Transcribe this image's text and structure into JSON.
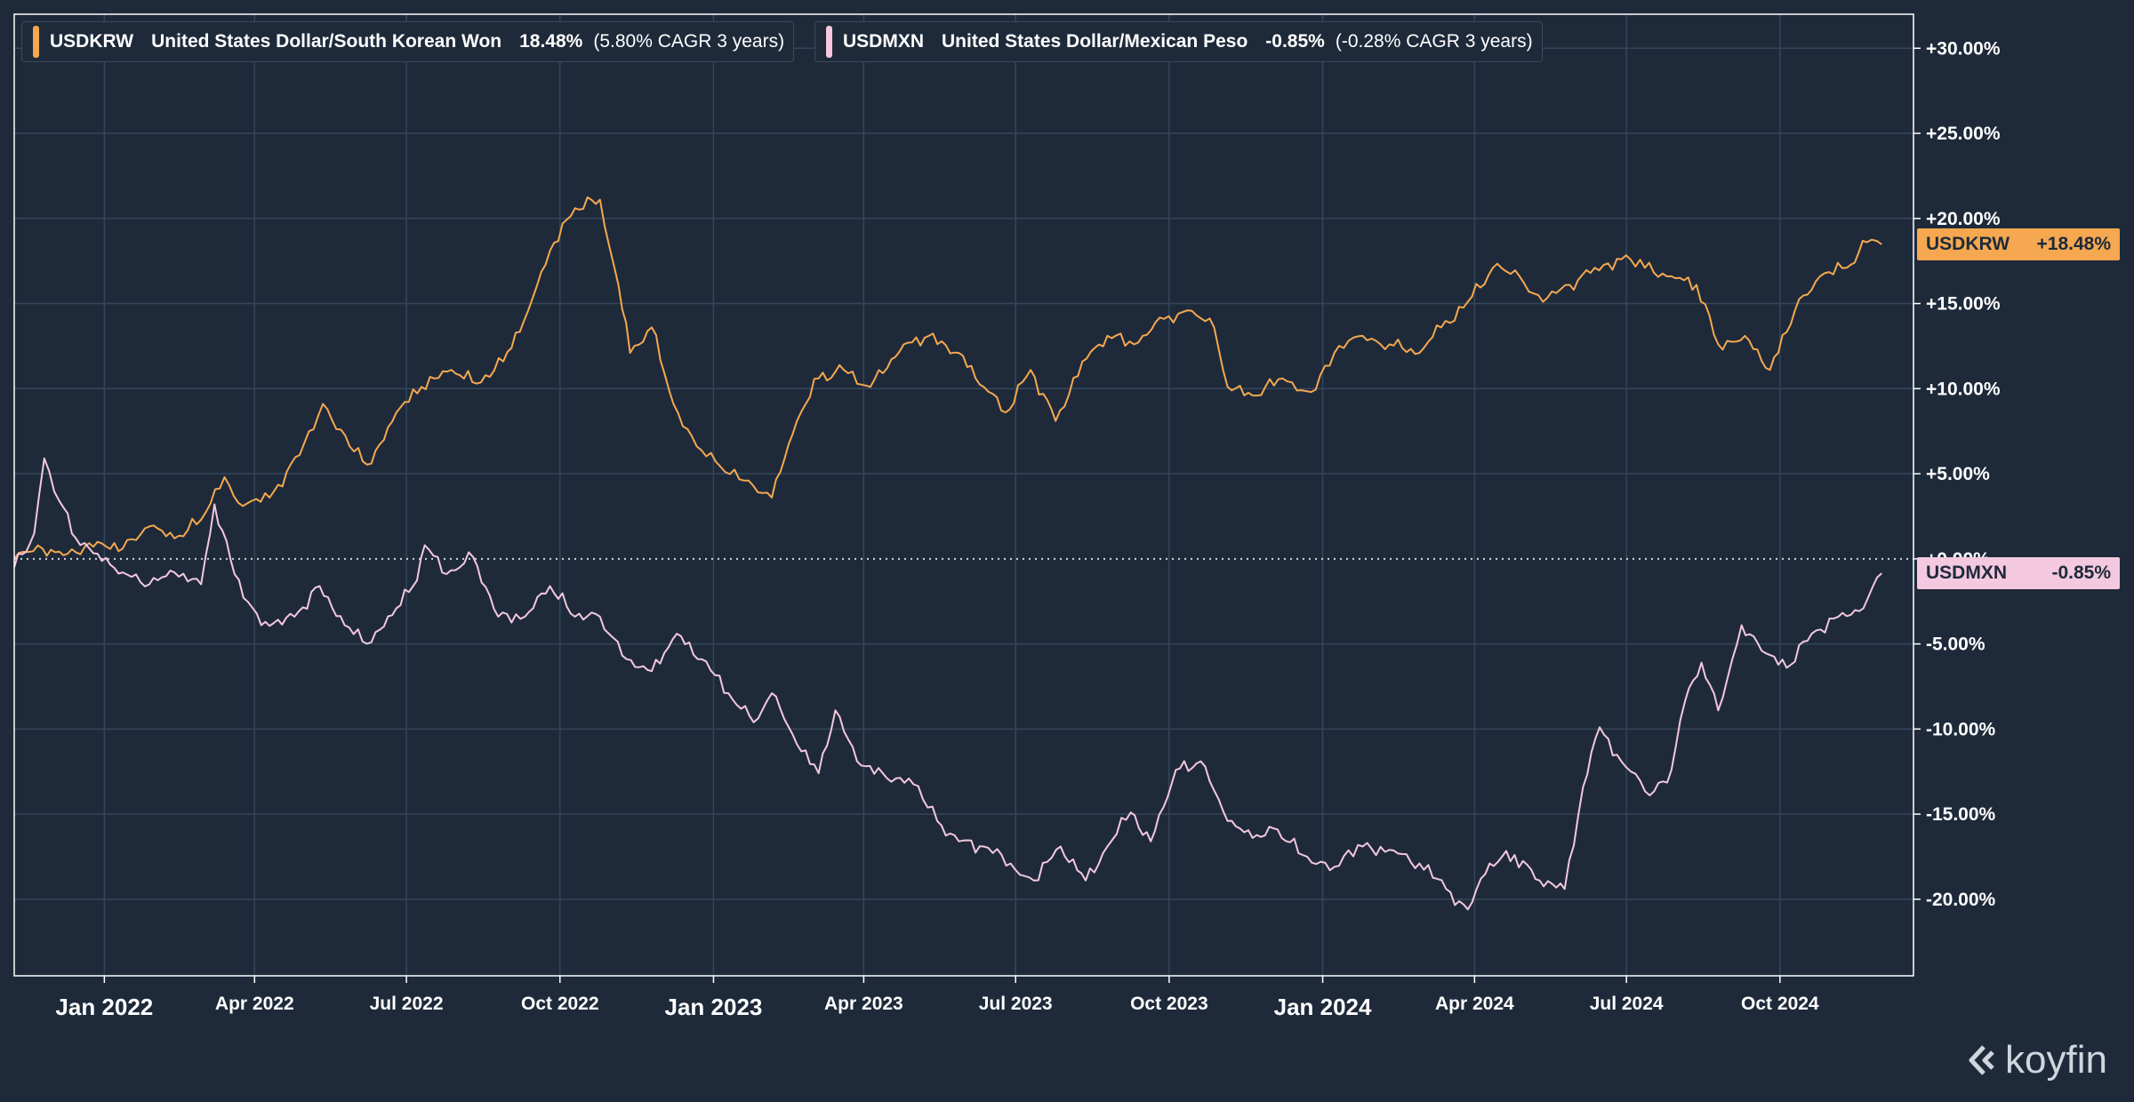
{
  "chart_data": {
    "type": "line",
    "y_unit": "percent change",
    "ylim": [
      -24.5,
      32
    ],
    "y_ticks": [
      "+30.00%",
      "+25.00%",
      "+20.00%",
      "+15.00%",
      "+10.00%",
      "+5.00%",
      "+0.00%",
      "-5.00%",
      "-10.00%",
      "-15.00%",
      "-20.00%"
    ],
    "x_ticks": [
      {
        "label": "Jan 2022",
        "date": "2022-01-01",
        "major": true
      },
      {
        "label": "Apr 2022",
        "date": "2022-04-01",
        "major": false
      },
      {
        "label": "Jul 2022",
        "date": "2022-07-01",
        "major": false
      },
      {
        "label": "Oct 2022",
        "date": "2022-10-01",
        "major": false
      },
      {
        "label": "Jan 2023",
        "date": "2023-01-01",
        "major": true
      },
      {
        "label": "Apr 2023",
        "date": "2023-04-01",
        "major": false
      },
      {
        "label": "Jul 2023",
        "date": "2023-07-01",
        "major": false
      },
      {
        "label": "Oct 2023",
        "date": "2023-10-01",
        "major": false
      },
      {
        "label": "Jan 2024",
        "date": "2024-01-01",
        "major": true
      },
      {
        "label": "Apr 2024",
        "date": "2024-04-01",
        "major": false
      },
      {
        "label": "Jul 2024",
        "date": "2024-07-01",
        "major": false
      },
      {
        "label": "Oct 2024",
        "date": "2024-10-01",
        "major": false
      }
    ],
    "xlim": [
      "2021-11-08",
      "2024-12-20"
    ],
    "grid": true,
    "zero_line": "dotted",
    "series": [
      {
        "name": "USDKRW",
        "full_name": "United States Dollar/South Korean Won",
        "change": "18.48%",
        "cagr": "(5.80% CAGR 3 years)",
        "badge": "+18.48%",
        "color": "#f5a850",
        "points": [
          [
            "2021-11-08",
            0.0
          ],
          [
            "2021-11-25",
            0.6
          ],
          [
            "2021-12-10",
            0.3
          ],
          [
            "2021-12-28",
            1.0
          ],
          [
            "2022-01-12",
            0.6
          ],
          [
            "2022-01-28",
            1.9
          ],
          [
            "2022-02-12",
            1.2
          ],
          [
            "2022-02-28",
            2.3
          ],
          [
            "2022-03-14",
            4.8
          ],
          [
            "2022-03-25",
            3.1
          ],
          [
            "2022-04-10",
            3.6
          ],
          [
            "2022-04-28",
            6.1
          ],
          [
            "2022-05-12",
            9.1
          ],
          [
            "2022-05-28",
            6.6
          ],
          [
            "2022-06-10",
            5.6
          ],
          [
            "2022-06-25",
            8.6
          ],
          [
            "2022-07-10",
            10.1
          ],
          [
            "2022-07-28",
            11.1
          ],
          [
            "2022-08-12",
            10.3
          ],
          [
            "2022-08-28",
            11.6
          ],
          [
            "2022-09-12",
            14.6
          ],
          [
            "2022-09-25",
            18.1
          ],
          [
            "2022-10-10",
            20.6
          ],
          [
            "2022-10-25",
            21.1
          ],
          [
            "2022-11-05",
            16.1
          ],
          [
            "2022-11-12",
            12.1
          ],
          [
            "2022-11-25",
            13.6
          ],
          [
            "2022-12-08",
            9.1
          ],
          [
            "2022-12-22",
            6.6
          ],
          [
            "2023-01-08",
            5.1
          ],
          [
            "2023-01-22",
            4.6
          ],
          [
            "2023-02-05",
            3.6
          ],
          [
            "2023-02-20",
            8.1
          ],
          [
            "2023-03-05",
            10.6
          ],
          [
            "2023-03-20",
            11.1
          ],
          [
            "2023-04-05",
            10.1
          ],
          [
            "2023-04-25",
            12.6
          ],
          [
            "2023-05-10",
            13.1
          ],
          [
            "2023-05-28",
            12.1
          ],
          [
            "2023-06-12",
            10.1
          ],
          [
            "2023-06-25",
            8.6
          ],
          [
            "2023-07-10",
            11.1
          ],
          [
            "2023-07-25",
            8.1
          ],
          [
            "2023-08-10",
            11.6
          ],
          [
            "2023-08-25",
            13.1
          ],
          [
            "2023-09-10",
            12.6
          ],
          [
            "2023-09-28",
            14.1
          ],
          [
            "2023-10-12",
            14.6
          ],
          [
            "2023-10-28",
            13.6
          ],
          [
            "2023-11-05",
            10.1
          ],
          [
            "2023-11-20",
            9.6
          ],
          [
            "2023-12-08",
            10.6
          ],
          [
            "2023-12-25",
            9.8
          ],
          [
            "2024-01-08",
            12.1
          ],
          [
            "2024-01-25",
            13.1
          ],
          [
            "2024-02-10",
            12.6
          ],
          [
            "2024-02-28",
            12.1
          ],
          [
            "2024-03-12",
            13.6
          ],
          [
            "2024-03-28",
            15.1
          ],
          [
            "2024-04-12",
            17.1
          ],
          [
            "2024-04-28",
            16.6
          ],
          [
            "2024-05-12",
            15.1
          ],
          [
            "2024-05-28",
            16.1
          ],
          [
            "2024-06-12",
            17.1
          ],
          [
            "2024-06-28",
            17.6
          ],
          [
            "2024-07-12",
            17.1
          ],
          [
            "2024-07-28",
            16.6
          ],
          [
            "2024-08-12",
            16.1
          ],
          [
            "2024-08-25",
            12.6
          ],
          [
            "2024-09-10",
            13.1
          ],
          [
            "2024-09-25",
            11.1
          ],
          [
            "2024-10-10",
            14.6
          ],
          [
            "2024-10-25",
            16.6
          ],
          [
            "2024-11-10",
            17.1
          ],
          [
            "2024-11-22",
            18.6
          ],
          [
            "2024-12-01",
            18.48
          ]
        ]
      },
      {
        "name": "USDMXN",
        "full_name": "United States Dollar/Mexican Peso",
        "change": "-0.85%",
        "cagr": "(-0.28% CAGR 3 years)",
        "badge": "-0.85%",
        "color": "#f4c8de",
        "points": [
          [
            "2021-11-08",
            -0.5
          ],
          [
            "2021-11-20",
            1.5
          ],
          [
            "2021-11-26",
            5.9
          ],
          [
            "2021-12-05",
            3.4
          ],
          [
            "2021-12-15",
            1.2
          ],
          [
            "2021-12-28",
            0.3
          ],
          [
            "2022-01-12",
            -0.8
          ],
          [
            "2022-01-28",
            -1.5
          ],
          [
            "2022-02-12",
            -0.8
          ],
          [
            "2022-02-28",
            -1.5
          ],
          [
            "2022-03-08",
            3.2
          ],
          [
            "2022-03-20",
            -0.9
          ],
          [
            "2022-04-05",
            -3.9
          ],
          [
            "2022-04-25",
            -3.4
          ],
          [
            "2022-05-10",
            -1.6
          ],
          [
            "2022-05-25",
            -3.9
          ],
          [
            "2022-06-10",
            -4.9
          ],
          [
            "2022-06-25",
            -2.9
          ],
          [
            "2022-07-05",
            -1.6
          ],
          [
            "2022-07-12",
            0.8
          ],
          [
            "2022-07-25",
            -0.9
          ],
          [
            "2022-08-10",
            0.1
          ],
          [
            "2022-08-25",
            -3.4
          ],
          [
            "2022-09-10",
            -3.4
          ],
          [
            "2022-09-25",
            -1.6
          ],
          [
            "2022-10-10",
            -3.4
          ],
          [
            "2022-10-25",
            -3.4
          ],
          [
            "2022-11-10",
            -5.9
          ],
          [
            "2022-11-25",
            -6.6
          ],
          [
            "2022-12-10",
            -4.4
          ],
          [
            "2022-12-25",
            -5.9
          ],
          [
            "2023-01-10",
            -7.9
          ],
          [
            "2023-01-25",
            -9.6
          ],
          [
            "2023-02-05",
            -7.9
          ],
          [
            "2023-02-20",
            -10.9
          ],
          [
            "2023-03-05",
            -12.6
          ],
          [
            "2023-03-15",
            -8.9
          ],
          [
            "2023-03-28",
            -11.9
          ],
          [
            "2023-04-15",
            -12.9
          ],
          [
            "2023-04-28",
            -12.9
          ],
          [
            "2023-05-15",
            -15.4
          ],
          [
            "2023-05-28",
            -16.6
          ],
          [
            "2023-06-12",
            -16.9
          ],
          [
            "2023-06-28",
            -17.9
          ],
          [
            "2023-07-12",
            -18.9
          ],
          [
            "2023-07-28",
            -16.9
          ],
          [
            "2023-08-12",
            -18.9
          ],
          [
            "2023-08-25",
            -16.9
          ],
          [
            "2023-09-08",
            -14.9
          ],
          [
            "2023-09-20",
            -16.6
          ],
          [
            "2023-10-05",
            -12.4
          ],
          [
            "2023-10-20",
            -11.9
          ],
          [
            "2023-11-05",
            -15.4
          ],
          [
            "2023-11-20",
            -16.4
          ],
          [
            "2023-12-05",
            -15.9
          ],
          [
            "2023-12-20",
            -17.4
          ],
          [
            "2024-01-08",
            -18.1
          ],
          [
            "2024-01-25",
            -16.9
          ],
          [
            "2024-02-10",
            -17.1
          ],
          [
            "2024-02-28",
            -17.9
          ],
          [
            "2024-03-15",
            -19.4
          ],
          [
            "2024-03-28",
            -20.6
          ],
          [
            "2024-04-10",
            -17.9
          ],
          [
            "2024-04-25",
            -17.4
          ],
          [
            "2024-05-10",
            -18.9
          ],
          [
            "2024-05-25",
            -19.4
          ],
          [
            "2024-06-05",
            -13.4
          ],
          [
            "2024-06-15",
            -9.9
          ],
          [
            "2024-06-28",
            -11.9
          ],
          [
            "2024-07-15",
            -13.9
          ],
          [
            "2024-07-28",
            -12.4
          ],
          [
            "2024-08-05",
            -8.4
          ],
          [
            "2024-08-15",
            -6.1
          ],
          [
            "2024-08-25",
            -8.9
          ],
          [
            "2024-09-08",
            -3.9
          ],
          [
            "2024-09-20",
            -5.4
          ],
          [
            "2024-10-05",
            -6.4
          ],
          [
            "2024-10-20",
            -4.4
          ],
          [
            "2024-11-05",
            -3.4
          ],
          [
            "2024-11-20",
            -2.9
          ],
          [
            "2024-12-01",
            -0.85
          ]
        ]
      }
    ]
  },
  "branding": {
    "logo_text": "koyfin"
  }
}
